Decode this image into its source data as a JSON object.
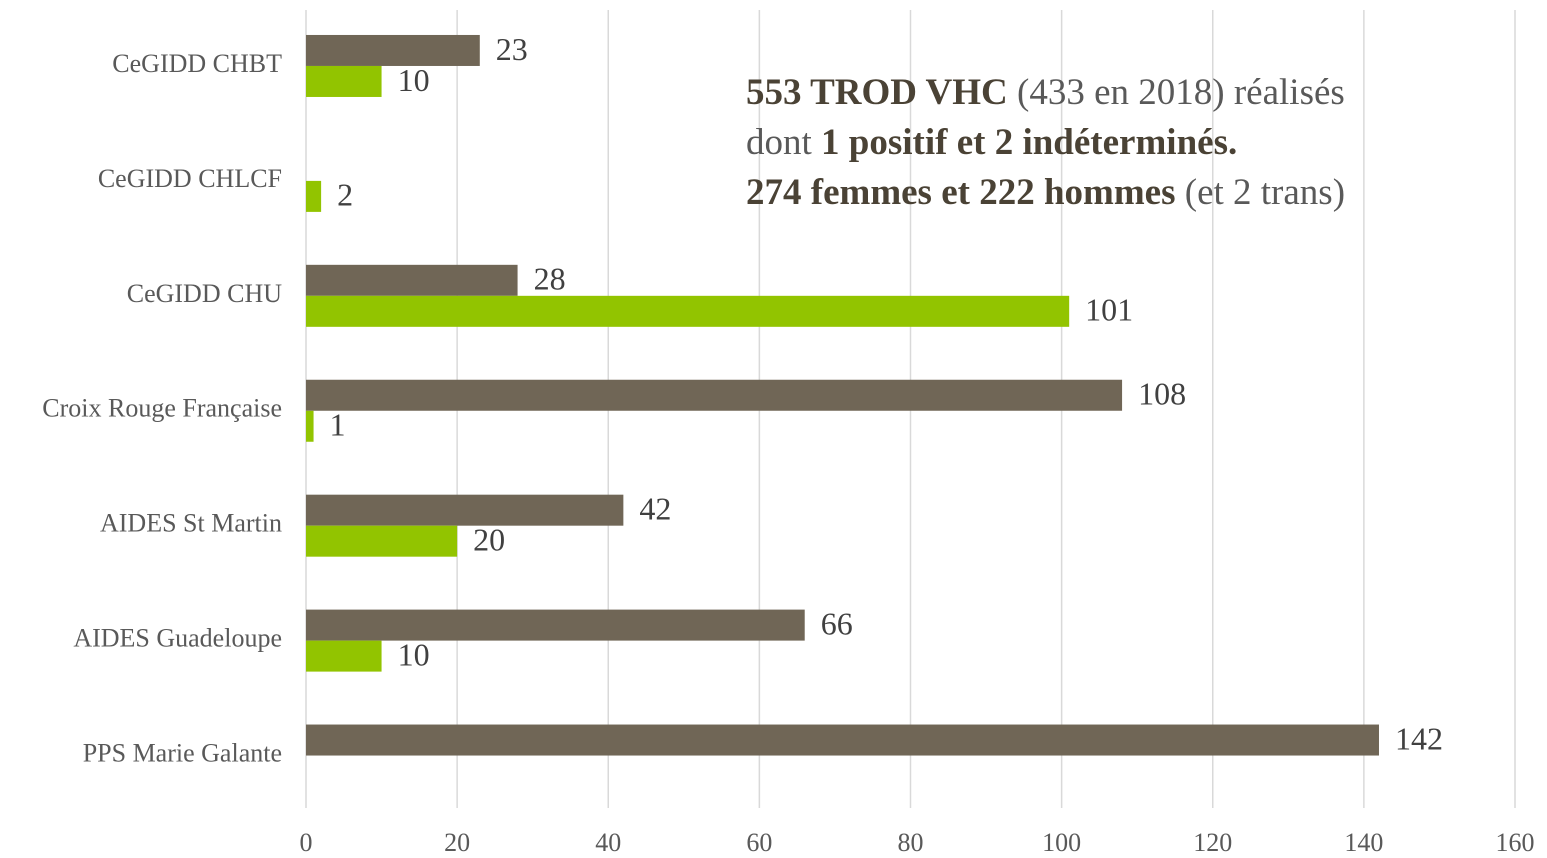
{
  "chart_data": {
    "type": "bar",
    "orientation": "horizontal",
    "categories": [
      "CeGIDD CHBT",
      "CeGIDD CHLCF",
      "CeGIDD CHU",
      "Croix Rouge Française",
      "AIDES St Martin",
      "AIDES Guadeloupe",
      "PPS Marie Galante"
    ],
    "series": [
      {
        "color": "#706656",
        "values": [
          23,
          null,
          28,
          108,
          42,
          66,
          142
        ]
      },
      {
        "color": "#92c400",
        "values": [
          10,
          2,
          101,
          1,
          20,
          10,
          null
        ]
      }
    ],
    "xlim": [
      0,
      160
    ],
    "xticks": [
      0,
      20,
      40,
      60,
      80,
      100,
      120,
      140,
      160
    ],
    "grid": true,
    "annotation": [
      [
        {
          "text": "553 TROD VHC",
          "bold": true
        },
        {
          "text": " (433 en 2018) réalisés",
          "bold": false
        }
      ],
      [
        {
          "text": "dont ",
          "bold": false
        },
        {
          "text": "1 positif et 2 indéterminés.",
          "bold": true
        }
      ],
      [
        {
          "text": "274 femmes et 222 hommes",
          "bold": true
        },
        {
          "text": " (et 2 trans)",
          "bold": false
        }
      ]
    ]
  }
}
